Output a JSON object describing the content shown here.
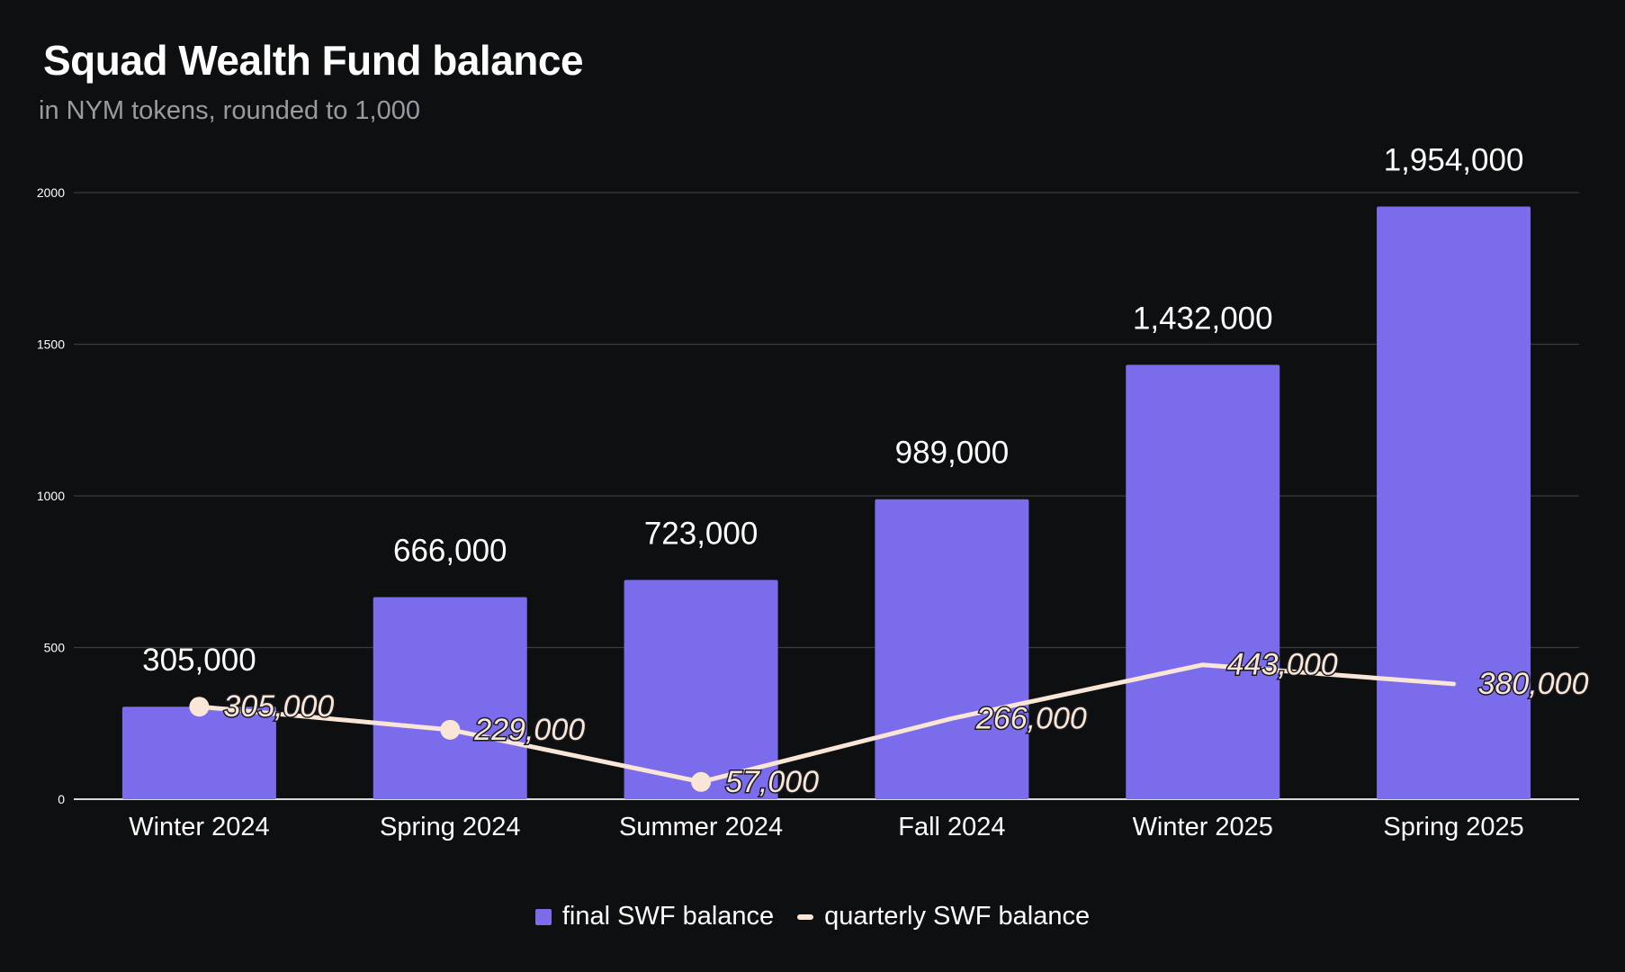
{
  "chart_data": {
    "type": "bar",
    "title": "Squad Wealth Fund balance",
    "subtitle": "in NYM tokens, rounded to 1,000",
    "categories": [
      "Winter 2024",
      "Spring 2024",
      "Summer 2024",
      "Fall 2024",
      "Winter 2025",
      "Spring 2025"
    ],
    "series": [
      {
        "name": "final SWF balance",
        "type": "bar",
        "color": "#7a6ceb",
        "values": [
          305,
          666,
          723,
          989,
          1432,
          1954
        ],
        "labels": [
          "305,000",
          "666,000",
          "723,000",
          "989,000",
          "1,432,000",
          "1,954,000"
        ]
      },
      {
        "name": "quarterly SWF balance",
        "type": "line",
        "color": "#fae6d6",
        "values": [
          305,
          229,
          57,
          266,
          443,
          380
        ],
        "labels": [
          "305,000",
          "229,000",
          "57,000",
          "266,000",
          "443,000",
          "380,000"
        ]
      }
    ],
    "yticks": [
      0,
      500,
      1000,
      1500,
      2000
    ],
    "ylim": [
      0,
      2000
    ],
    "grid": true,
    "legend_position": "bottom"
  }
}
